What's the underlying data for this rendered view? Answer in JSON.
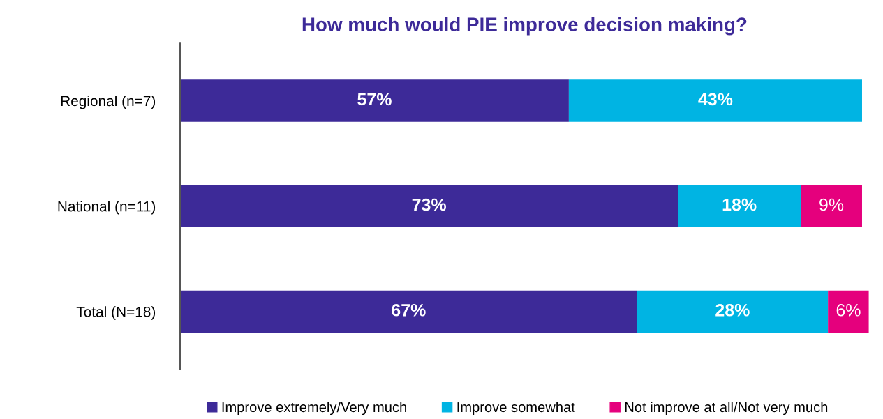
{
  "chart_data": {
    "type": "bar",
    "orientation": "horizontal",
    "stacked": true,
    "title": "How much would PIE improve decision making?",
    "categories": [
      "Regional (n=7)",
      "National (n=11)",
      "Total (N=18)"
    ],
    "series": [
      {
        "name": "Improve extremely/Very much",
        "color": "#3d2a98",
        "values": [
          57,
          73,
          67
        ],
        "value_labels": [
          "57%",
          "73%",
          "67%"
        ]
      },
      {
        "name": "Improve somewhat",
        "color": "#00b4e3",
        "values": [
          43,
          18,
          28
        ],
        "value_labels": [
          "43%",
          "18%",
          "28%"
        ]
      },
      {
        "name": "Not improve at all/Not very much",
        "color": "#e5007d",
        "values": [
          null,
          9,
          6
        ],
        "value_labels": [
          null,
          "9%",
          "6%"
        ]
      }
    ],
    "legend": "bottom",
    "grid": false
  }
}
